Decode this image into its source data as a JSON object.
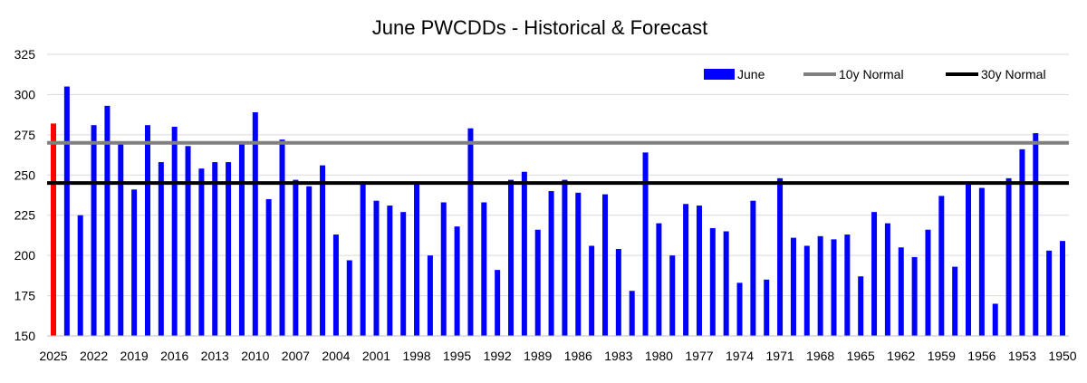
{
  "chart_data": {
    "type": "bar",
    "title": "June PWCDDs - Historical & Forecast",
    "xlabel": "",
    "ylabel": "",
    "ylim": [
      150,
      325
    ],
    "yticks": [
      150,
      175,
      200,
      225,
      250,
      275,
      300,
      325
    ],
    "grid": "horizontal",
    "legend_position": "top-right",
    "years": [
      2025,
      2024,
      2023,
      2022,
      2021,
      2020,
      2019,
      2018,
      2017,
      2016,
      2015,
      2014,
      2013,
      2012,
      2011,
      2010,
      2009,
      2008,
      2007,
      2006,
      2005,
      2004,
      2003,
      2002,
      2001,
      2000,
      1999,
      1998,
      1997,
      1996,
      1995,
      1994,
      1993,
      1992,
      1991,
      1990,
      1989,
      1988,
      1987,
      1986,
      1985,
      1984,
      1983,
      1982,
      1981,
      1980,
      1979,
      1978,
      1977,
      1976,
      1975,
      1974,
      1973,
      1972,
      1971,
      1970,
      1969,
      1968,
      1967,
      1966,
      1965,
      1964,
      1963,
      1962,
      1961,
      1960,
      1959,
      1958,
      1957,
      1956,
      1955,
      1954,
      1953,
      1952,
      1951,
      1950
    ],
    "x_tick_labels": [
      "2025",
      "2022",
      "2019",
      "2016",
      "2013",
      "2010",
      "2007",
      "2004",
      "2001",
      "1998",
      "1995",
      "1992",
      "1989",
      "1986",
      "1983",
      "1980",
      "1977",
      "1974",
      "1971",
      "1968",
      "1965",
      "1962",
      "1959",
      "1956",
      "1953",
      "1950"
    ],
    "values": [
      282,
      305,
      225,
      281,
      293,
      269,
      241,
      281,
      258,
      280,
      268,
      254,
      258,
      258,
      271,
      289,
      235,
      272,
      247,
      243,
      256,
      213,
      197,
      246,
      234,
      231,
      227,
      246,
      200,
      233,
      218,
      279,
      233,
      191,
      247,
      252,
      216,
      240,
      247,
      239,
      206,
      238,
      204,
      178,
      264,
      220,
      200,
      232,
      231,
      217,
      215,
      183,
      234,
      185,
      248,
      211,
      206,
      212,
      210,
      213,
      187,
      227,
      220,
      205,
      199,
      216,
      237,
      193,
      244,
      242,
      170,
      248,
      266,
      276,
      203,
      209
    ],
    "series": [
      {
        "name": "June",
        "color": "#0000FF"
      },
      {
        "name": "10y Normal",
        "value": 270,
        "color": "#808080"
      },
      {
        "name": "30y Normal",
        "value": 245,
        "color": "#000000"
      }
    ],
    "highlight": {
      "year": 2025,
      "color": "#FF0000"
    }
  }
}
